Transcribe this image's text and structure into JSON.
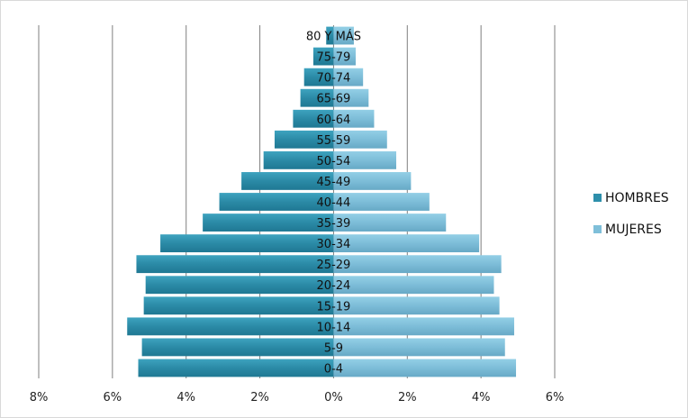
{
  "chart_data": {
    "type": "bar",
    "orientation": "horizontal",
    "title": "",
    "xlabel": "",
    "ylabel": "",
    "xlim": [
      -8,
      6
    ],
    "x_ticks": [
      -8,
      -6,
      -4,
      -2,
      0,
      2,
      4,
      6
    ],
    "x_tick_labels": [
      "8%",
      "6%",
      "4%",
      "2%",
      "0%",
      "2%",
      "4%",
      "6%"
    ],
    "grid": true,
    "legend_position": "right",
    "categories": [
      "0-4",
      "5-9",
      "10-14",
      "15-19",
      "20-24",
      "25-29",
      "30-34",
      "35-39",
      "40-44",
      "45-49",
      "50-54",
      "55-59",
      "60-64",
      "65-69",
      "70-74",
      "75-79",
      "80 Y MÁS"
    ],
    "series": [
      {
        "name": "HOMBRES",
        "color": "#2e8fab",
        "values": [
          5.3,
          5.2,
          5.6,
          5.15,
          5.1,
          5.35,
          4.7,
          3.55,
          3.1,
          2.5,
          1.9,
          1.6,
          1.1,
          0.9,
          0.8,
          0.55,
          0.2
        ]
      },
      {
        "name": "MUJERES",
        "color": "#7fbfd9",
        "values": [
          4.95,
          4.65,
          4.9,
          4.5,
          4.35,
          4.55,
          3.95,
          3.05,
          2.6,
          2.1,
          1.7,
          1.45,
          1.1,
          0.95,
          0.8,
          0.6,
          0.55
        ]
      }
    ]
  }
}
